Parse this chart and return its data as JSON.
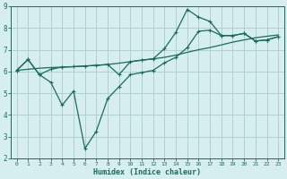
{
  "xlabel": "Humidex (Indice chaleur)",
  "background_color": "#d7eeee",
  "grid_color": "#b0d0d0",
  "line_color": "#1a6b5a",
  "xlim": [
    -0.5,
    23.5
  ],
  "ylim": [
    2,
    9
  ],
  "yticks": [
    2,
    3,
    4,
    5,
    6,
    7,
    8,
    9
  ],
  "xticks": [
    0,
    1,
    2,
    3,
    4,
    5,
    6,
    7,
    8,
    9,
    10,
    11,
    12,
    13,
    14,
    15,
    16,
    17,
    18,
    19,
    20,
    21,
    22,
    23
  ],
  "line1_x": [
    0,
    1,
    2,
    3,
    4,
    5,
    6,
    7,
    8,
    9,
    10,
    11,
    12,
    13,
    14,
    15,
    16,
    17,
    18,
    19,
    20,
    21,
    22,
    23
  ],
  "line1_y": [
    6.05,
    6.55,
    5.85,
    5.5,
    4.45,
    5.1,
    2.45,
    3.25,
    4.75,
    5.3,
    5.85,
    5.95,
    6.05,
    6.4,
    6.65,
    7.1,
    7.85,
    7.9,
    7.65,
    7.65,
    7.75,
    7.4,
    7.45,
    7.6
  ],
  "line2_x": [
    0,
    1,
    2,
    3,
    4,
    5,
    6,
    7,
    8,
    9,
    10,
    11,
    12,
    13,
    14,
    15,
    16,
    17,
    18,
    19,
    20,
    21,
    22,
    23
  ],
  "line2_y": [
    6.05,
    6.1,
    6.15,
    6.18,
    6.2,
    6.22,
    6.25,
    6.28,
    6.32,
    6.38,
    6.45,
    6.52,
    6.58,
    6.65,
    6.75,
    6.88,
    7.0,
    7.1,
    7.22,
    7.35,
    7.45,
    7.55,
    7.62,
    7.68
  ],
  "line3_x": [
    0,
    1,
    2,
    3,
    4,
    5,
    6,
    7,
    8,
    9,
    10,
    11,
    12,
    13,
    14,
    15,
    16,
    17,
    18,
    19,
    20,
    21,
    22,
    23
  ],
  "line3_y": [
    6.05,
    6.55,
    5.85,
    6.1,
    6.2,
    6.22,
    6.25,
    6.28,
    6.32,
    5.85,
    6.45,
    6.52,
    6.58,
    7.05,
    7.8,
    8.85,
    8.5,
    8.3,
    7.65,
    7.65,
    7.75,
    7.4,
    7.45,
    7.6
  ]
}
